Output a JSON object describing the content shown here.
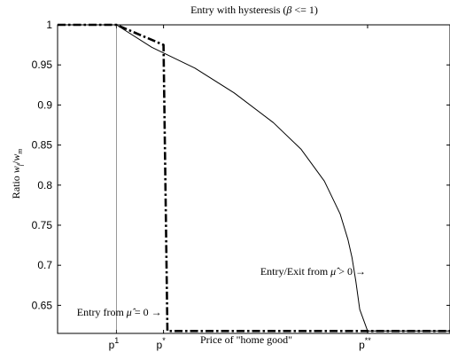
{
  "chart_data": {
    "type": "line",
    "title_text": "Entry with hysteresis (",
    "title_beta": "β",
    "title_rel": " <= 1)",
    "ylabel_text": "Ratio ",
    "ylabel_w": "w",
    "ylabel_f": "f",
    "ylabel_slash": "/",
    "ylabel_m": "m",
    "xlabel": "Price of \"home good\"",
    "ylim": [
      0.615,
      1.0
    ],
    "xlim": [
      0,
      100
    ],
    "y_ticks": [
      "1",
      "0.95",
      "0.9",
      "0.85",
      "0.8",
      "0.75",
      "0.7",
      "0.65"
    ],
    "y_tick_values": [
      1.0,
      0.95,
      0.9,
      0.85,
      0.8,
      0.75,
      0.7,
      0.65
    ],
    "x_tick_labels": [
      {
        "base": "p",
        "sup": "1",
        "value": 15
      },
      {
        "base": "p",
        "sup": "*",
        "value": 27
      },
      {
        "base": "p",
        "sup": "**",
        "value": 79
      }
    ],
    "grid": false,
    "series": [
      {
        "style": "solid",
        "x": [
          0,
          15,
          24,
          35,
          45,
          55,
          62,
          68,
          72,
          74,
          75,
          76,
          77,
          79,
          100
        ],
        "y": [
          1.0,
          1.0,
          0.972,
          0.946,
          0.915,
          0.878,
          0.845,
          0.805,
          0.764,
          0.732,
          0.71,
          0.68,
          0.645,
          0.618,
          0.618
        ]
      },
      {
        "style": "dashdot",
        "x": [
          0,
          15,
          27,
          28,
          100
        ],
        "y": [
          1.0,
          1.0,
          0.975,
          0.618,
          0.618
        ]
      }
    ],
    "annotations": [
      {
        "text": "Entry from ",
        "sym": "μ̂",
        "rel": " = 0 →",
        "x": 27,
        "y": 0.637
      },
      {
        "text": "Entry/Exit from ",
        "sym": "μ̂",
        "rel": " > 0 →",
        "x": 79,
        "y": 0.688
      }
    ]
  }
}
